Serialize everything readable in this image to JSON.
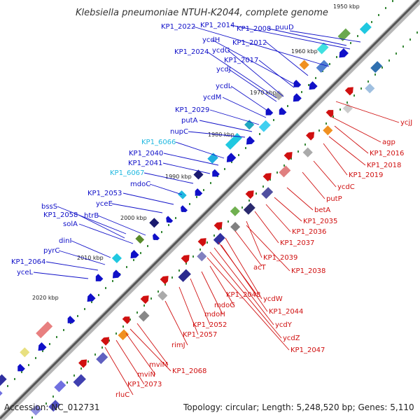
{
  "header": {
    "title": "Klebsiella pneumoniae NTUH-K2044, complete genome"
  },
  "footer": {
    "accession": "Accession: NC_012731",
    "summary": "Topology: circular; Length: 5,248,520 bp; Genes: 5,110"
  },
  "scale_labels": [
    "1950 kbp",
    "1960 kbp",
    "1970 kbp",
    "1980 kbp",
    "1990 kbp",
    "2000 kbp",
    "2010 kbp",
    "2020 kbp"
  ],
  "gene_labels_minus": [
    "KP1_2022",
    "KP1_2014",
    "KP1_2008",
    "puuD",
    "ycdH",
    "KP1_2012",
    "KP1_2024",
    "ycdG",
    "KP1_2017",
    "ycdJ",
    "ycdL",
    "ycdM",
    "KP1_2029",
    "putA",
    "nupC",
    "KP1_6066",
    "KP1_2040",
    "KP1_2041",
    "KP1_6067",
    "mdoC",
    "KP1_2053",
    "yceE",
    "bssS",
    "htrB",
    "KP1_2058",
    "solA",
    "dinI",
    "pyrC",
    "KP1_2064",
    "yceL"
  ],
  "gene_labels_plus": [
    "ycjJ",
    "agp",
    "KP1_2016",
    "KP1_2018",
    "KP1_2019",
    "ycdC",
    "putP",
    "betA",
    "KP1_2035",
    "KP1_2036",
    "KP1_2037",
    "KP1_2039",
    "acT",
    "KP1_2038",
    "KP1_2048",
    "ycdW",
    "KP1_2044",
    "mdoG",
    "mdoH",
    "ycdY",
    "KP1_2052",
    "ycdZ",
    "KP1_2047",
    "KP1_2057",
    "rimJ",
    "KP1_2068",
    "mviM",
    "mviN",
    "KP1_2073",
    "rluC"
  ],
  "colors": {
    "minus_strand": "#1010c8",
    "plus_strand": "#d01010",
    "hypothetical": "#20b8e0"
  }
}
